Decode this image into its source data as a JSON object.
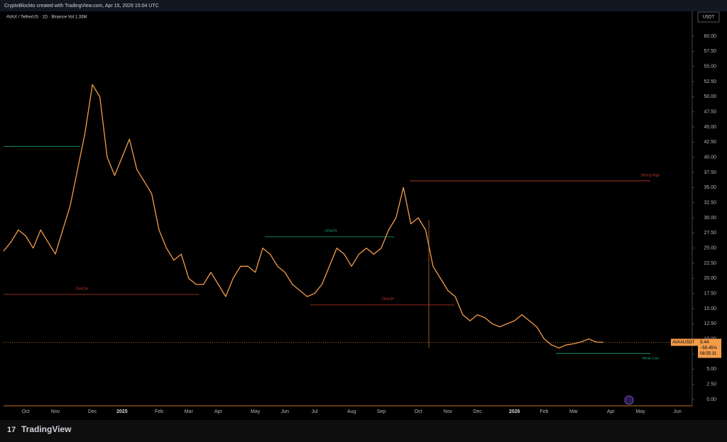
{
  "chart_data": {
    "type": "line",
    "header": "CryptoBlockto created with TradingView.com, Apr 15, 2026 15:04 UTC",
    "title": "AVAX / TetherUS · 1D · Binance  Vol 1.33M",
    "currency": "USDT",
    "brand": "TradingView",
    "symbol": "AVAXUSDT",
    "change": "−59.45%",
    "countdown": "08:55:31",
    "color": "#f39c4a",
    "categories": [
      null,
      null,
      null,
      "Oct",
      null,
      null,
      null,
      "Nov",
      null,
      null,
      null,
      null,
      "Dec",
      null,
      null,
      null,
      "2025",
      null,
      null,
      null,
      null,
      "Feb",
      null,
      null,
      null,
      "Mar",
      null,
      null,
      null,
      "Apr",
      null,
      null,
      null,
      null,
      "May",
      null,
      null,
      null,
      "Jun",
      null,
      null,
      null,
      "Jul",
      null,
      null,
      null,
      null,
      "Aug",
      null,
      null,
      null,
      "Sep",
      null,
      null,
      null,
      null,
      "Oct",
      null,
      null,
      null,
      "Nov",
      null,
      null,
      null,
      "Dec",
      null,
      null,
      null,
      null,
      "2026",
      null,
      null,
      null,
      "Feb",
      null,
      null,
      null,
      "Mar",
      null,
      null,
      null,
      null,
      "Apr",
      null,
      null,
      null,
      "May",
      null,
      null,
      null,
      null,
      "Jun",
      null
    ],
    "values": [
      24.5,
      26,
      28,
      27,
      25,
      28,
      26,
      24,
      28,
      32,
      38,
      44,
      52,
      50,
      40,
      37,
      40,
      43,
      38,
      36,
      34,
      28,
      25,
      23,
      24,
      20,
      19,
      19,
      21,
      19,
      17,
      20,
      22,
      22,
      21,
      25,
      24,
      22,
      21,
      19,
      18,
      17,
      17.5,
      19,
      22,
      25,
      24,
      22,
      24,
      25,
      24,
      25,
      28,
      30,
      35,
      29,
      30,
      28,
      22,
      20,
      18,
      17,
      14,
      13,
      14,
      13.5,
      12.5,
      12,
      12.5,
      13,
      14,
      13,
      12,
      10,
      9,
      8.5,
      9,
      9.2,
      9.5,
      10,
      9.5,
      9.44,
      null,
      null,
      null,
      null,
      null,
      null,
      null,
      null,
      null,
      null,
      null
    ],
    "ylim": [
      -1.05,
      64.1
    ],
    "yticks": [
      {
        "value": 0,
        "label": "0.00"
      },
      {
        "value": 2.5,
        "label": "2.50"
      },
      {
        "value": 5,
        "label": "5.00"
      },
      {
        "value": 7.5,
        "label": "7.50"
      },
      {
        "value": 10,
        "label": "10.00"
      },
      {
        "value": 12.5,
        "label": "12.50"
      },
      {
        "value": 15,
        "label": "15.00"
      },
      {
        "value": 17.5,
        "label": "17.50"
      },
      {
        "value": 20,
        "label": "20.00"
      },
      {
        "value": 22.5,
        "label": "22.50"
      },
      {
        "value": 25,
        "label": "25.00"
      },
      {
        "value": 27.5,
        "label": "27.50"
      },
      {
        "value": 30,
        "label": "30.00"
      },
      {
        "value": 32.5,
        "label": "32.50"
      },
      {
        "value": 35,
        "label": "35.00"
      },
      {
        "value": 37.5,
        "label": "37.50"
      },
      {
        "value": 40,
        "label": "40.00"
      },
      {
        "value": 42.5,
        "label": "42.50"
      },
      {
        "value": 45,
        "label": "45.00"
      },
      {
        "value": 47.5,
        "label": "47.50"
      },
      {
        "value": 50,
        "label": "50.00"
      },
      {
        "value": 52.5,
        "label": "52.50"
      },
      {
        "value": 55,
        "label": "55.00"
      },
      {
        "value": 57.5,
        "label": "57.50"
      },
      {
        "value": 60,
        "label": "60.00"
      }
    ],
    "levels": [
      {
        "value": 41.8,
        "color": "#1aa37a"
      },
      {
        "value": 17.35,
        "color": "#c0392b",
        "label": "CHoCH"
      },
      {
        "value": 26.85,
        "color": "#1aa37a",
        "label": "CHoCH"
      },
      {
        "value": 15.6,
        "color": "#c0392b",
        "label": "CHoCH"
      },
      {
        "value": 36.1,
        "color": "#c0392b",
        "label": "Strong High"
      },
      {
        "value": 7.6,
        "color": "#1aa37a",
        "label": "Weak Low"
      }
    ]
  }
}
